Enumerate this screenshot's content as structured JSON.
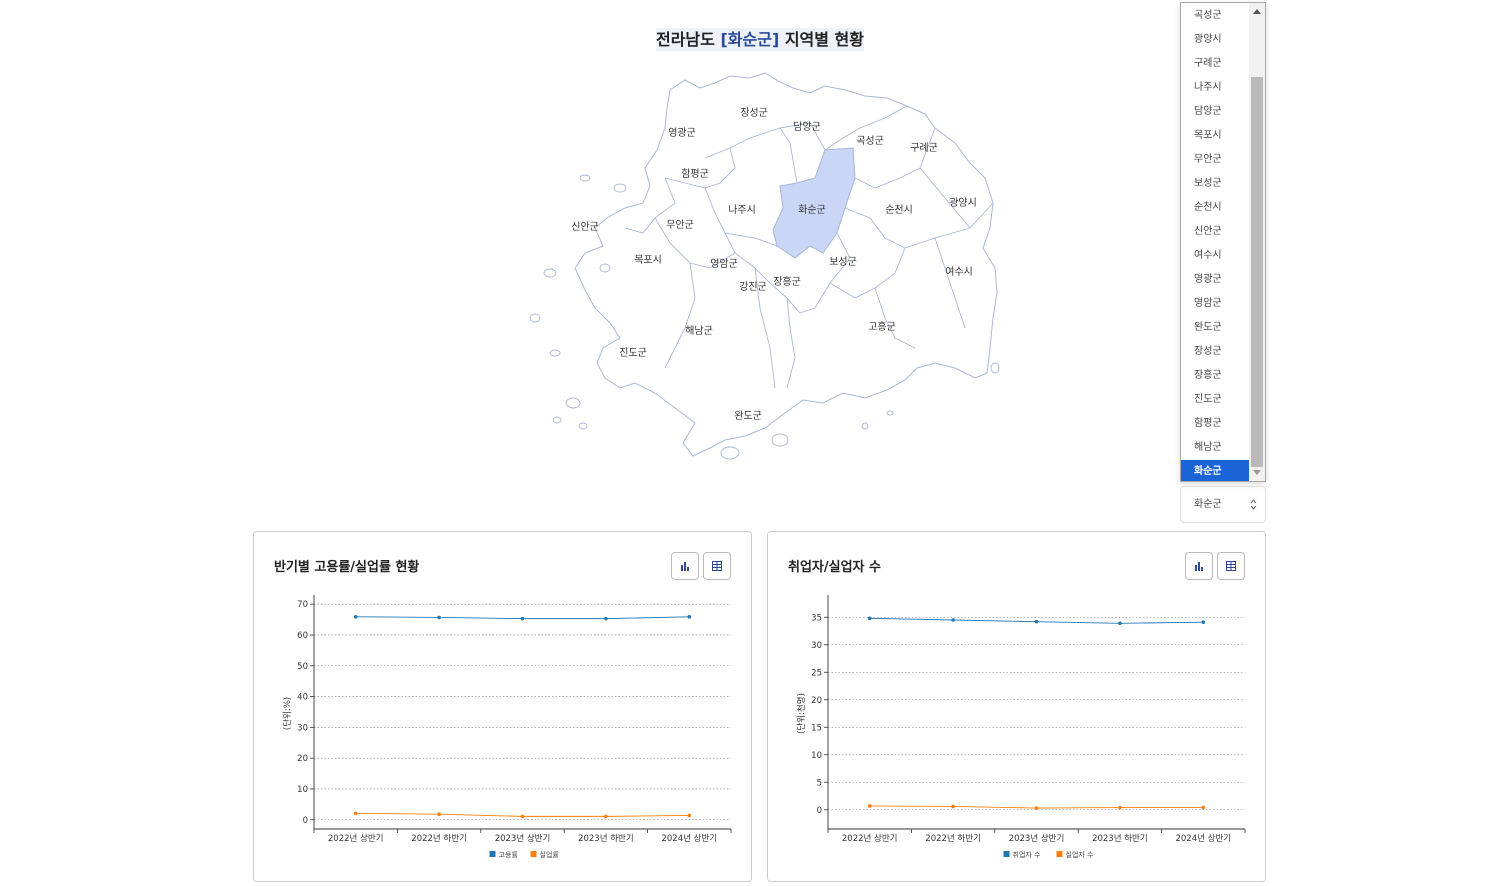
{
  "header": {
    "title_prefix": "전라남도",
    "bracket_open": "[",
    "region": "화순군",
    "bracket_close": "]",
    "title_suffix": "지역별 현황"
  },
  "map": {
    "highlight_color": "#c9d6f5",
    "outline_color": "#a9b7d6",
    "regions": [
      "영광군",
      "장성군",
      "담양군",
      "곡성군",
      "구례군",
      "함평군",
      "나주시",
      "화순군",
      "순천시",
      "광양시",
      "신안군",
      "무안군",
      "목포시",
      "영암군",
      "보성군",
      "여수시",
      "강진군",
      "장흥군",
      "해남군",
      "고흥군",
      "진도군",
      "완도군"
    ]
  },
  "dropdown": {
    "items": [
      "곡성군",
      "광양시",
      "구례군",
      "나주시",
      "담양군",
      "목포시",
      "무안군",
      "보성군",
      "순천시",
      "신안군",
      "여수시",
      "영광군",
      "영암군",
      "완도군",
      "장성군",
      "장흥군",
      "진도군",
      "함평군",
      "해남군",
      "화순군"
    ],
    "selected": "화순군",
    "selected_color": "#1a64d8"
  },
  "charts": {
    "left": {
      "title": "반기별 고용률/실업률 현황",
      "chart_data": {
        "type": "line",
        "categories": [
          "2022년 상반기",
          "2022년 하반기",
          "2023년 상반기",
          "2023년 하반기",
          "2024년 상반기"
        ],
        "series": [
          {
            "name": "고용률",
            "color": "#1f77b4",
            "values": [
              65.9,
              65.7,
              65.3,
              65.3,
              65.9
            ]
          },
          {
            "name": "실업률",
            "color": "#ff7f0e",
            "values": [
              2.1,
              1.8,
              1.1,
              1.1,
              1.4
            ]
          }
        ],
        "ylabel": "(단위:%)",
        "yticks": [
          0,
          10,
          20,
          30,
          40,
          50,
          60,
          70
        ],
        "ylim": [
          -3,
          72
        ],
        "grid": true,
        "legend": "bottom"
      }
    },
    "right": {
      "title": "취업자/실업자 수",
      "chart_data": {
        "type": "line",
        "categories": [
          "2022년 상반기",
          "2022년 하반기",
          "2023년 상반기",
          "2023년 하반기",
          "2024년 상반기"
        ],
        "series": [
          {
            "name": "취업자 수",
            "color": "#1f77b4",
            "values": [
              34.8,
              34.5,
              34.2,
              33.9,
              34.1
            ]
          },
          {
            "name": "실업자 수",
            "color": "#ff7f0e",
            "values": [
              0.7,
              0.6,
              0.3,
              0.4,
              0.4
            ]
          }
        ],
        "ylabel": "(단위:천명)",
        "yticks": [
          0,
          5,
          10,
          15,
          20,
          25,
          30,
          35
        ],
        "ylim": [
          -3.5,
          38.5
        ],
        "grid": true,
        "legend": "bottom"
      }
    }
  }
}
